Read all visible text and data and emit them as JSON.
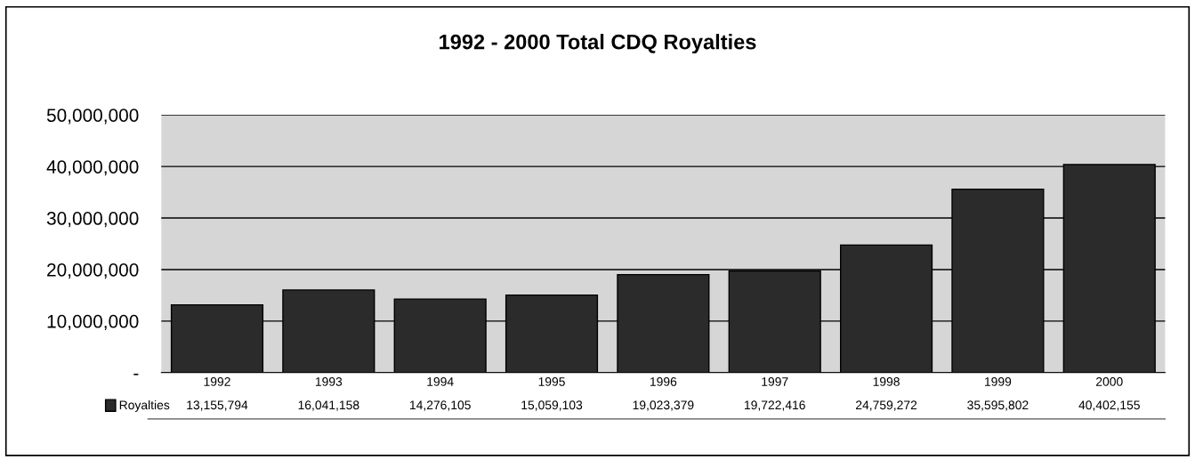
{
  "chart_data": {
    "type": "bar",
    "title": "1992 - 2000 Total CDQ Royalties",
    "categories": [
      "1992",
      "1993",
      "1994",
      "1995",
      "1996",
      "1997",
      "1998",
      "1999",
      "2000"
    ],
    "series": [
      {
        "name": "Royalties",
        "color": "#2b2b2b",
        "values": [
          13155794,
          16041158,
          14276105,
          15059103,
          19023379,
          19722416,
          24759272,
          35595802,
          40402155
        ],
        "value_labels": [
          "13,155,794",
          "16,041,158",
          "14,276,105",
          "15,059,103",
          "19,023,379",
          "19,722,416",
          "24,759,272",
          "35,595,802",
          "40,402,155"
        ]
      }
    ],
    "ylim": [
      0,
      50000000
    ],
    "yticks": [
      {
        "value": 0,
        "label": "-"
      },
      {
        "value": 10000000,
        "label": "10,000,000"
      },
      {
        "value": 20000000,
        "label": "20,000,000"
      },
      {
        "value": 30000000,
        "label": "30,000,000"
      },
      {
        "value": 40000000,
        "label": "40,000,000"
      },
      {
        "value": 50000000,
        "label": "50,000,000"
      }
    ],
    "grid": "y",
    "legend": "bottom left"
  }
}
